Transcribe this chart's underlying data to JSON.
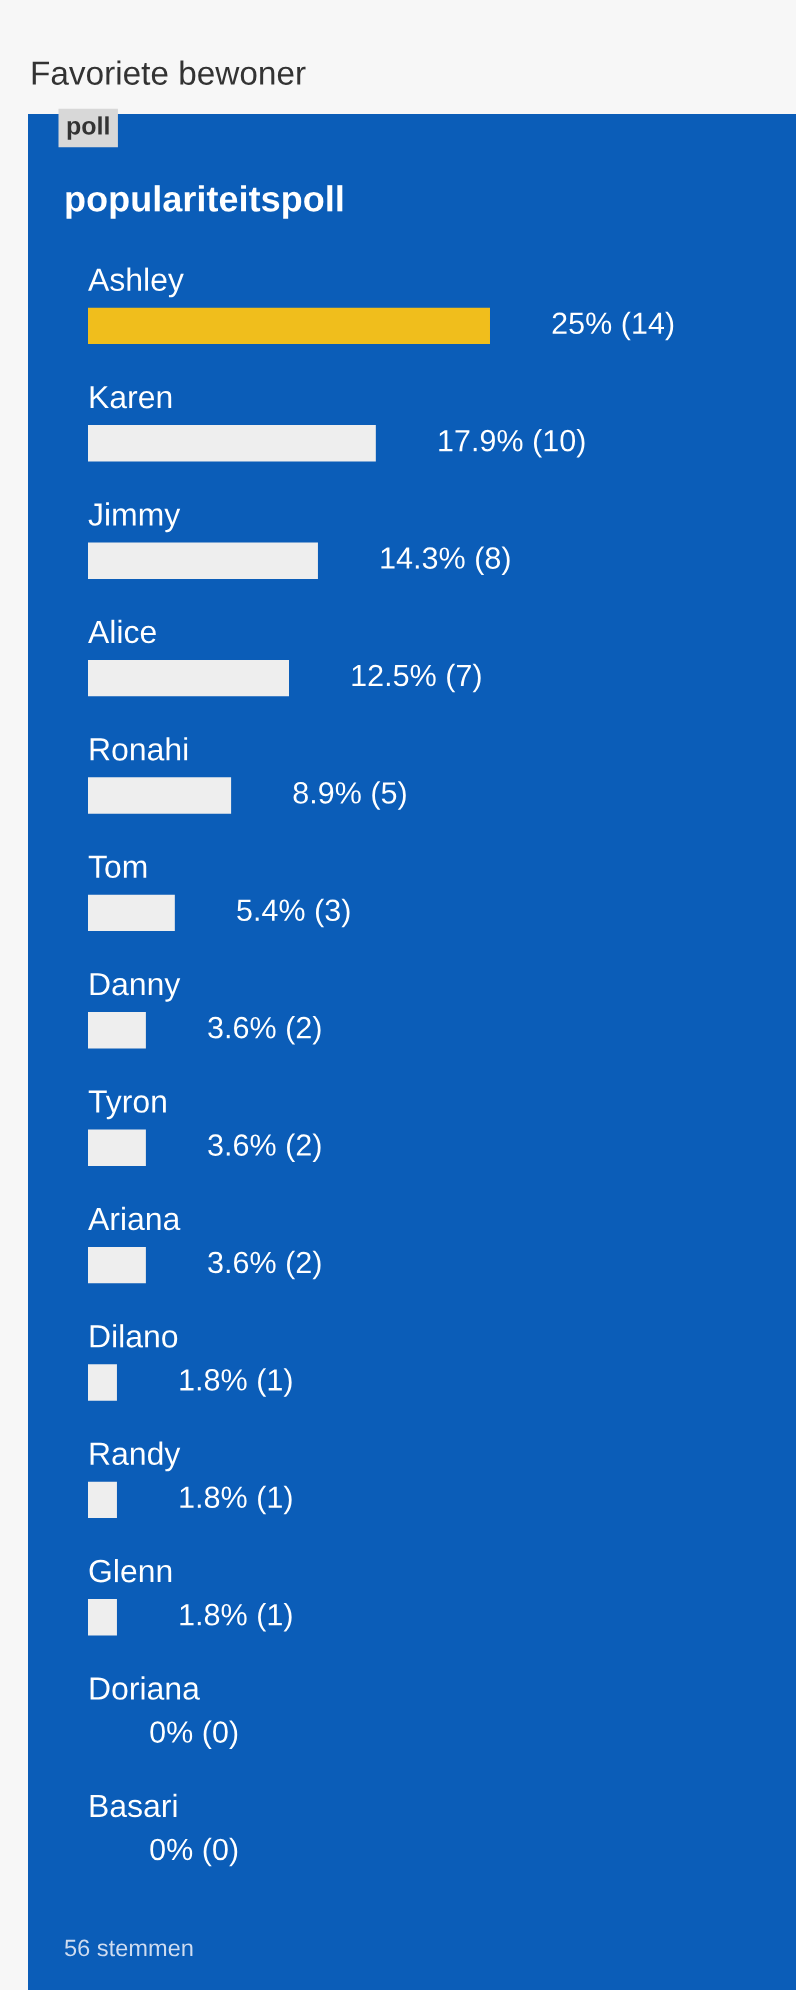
{
  "chart_data": {
    "type": "bar",
    "orientation": "horizontal",
    "title": "Favoriete bewoner",
    "subtitle": "populariteitspoll",
    "annotations": [
      "poll",
      "56 stemmen"
    ],
    "categories": [
      "Ashley",
      "Karen",
      "Jimmy",
      "Alice",
      "Ronahi",
      "Tom",
      "Danny",
      "Tyron",
      "Ariana",
      "Dilano",
      "Randy",
      "Glenn",
      "Doriana",
      "Basari"
    ],
    "values": [
      25,
      17.9,
      14.3,
      12.5,
      8.9,
      5.4,
      3.6,
      3.6,
      3.6,
      1.8,
      1.8,
      1.8,
      0,
      0
    ],
    "value_labels": [
      "25% (14)",
      "17.9% (10)",
      "14.3% (8)",
      "12.5% (7)",
      "8.9% (5)",
      "5.4% (3)",
      "3.6% (2)",
      "3.6% (2)",
      "3.6% (2)",
      "1.8% (1)",
      "1.8% (1)",
      "1.8% (1)",
      "0% (0)",
      "0% (0)"
    ],
    "colors": [
      "#f0be1c",
      "#eeeeee",
      "#eeeeee",
      "#eeeeee",
      "#eeeeee",
      "#eeeeee",
      "#eeeeee",
      "#eeeeee",
      "#eeeeee",
      "#eeeeee",
      "#eeeeee",
      "#eeeeee",
      "#eeeeee",
      "#eeeeee"
    ],
    "tick_labels": false,
    "grid": false,
    "legend": false
  }
}
